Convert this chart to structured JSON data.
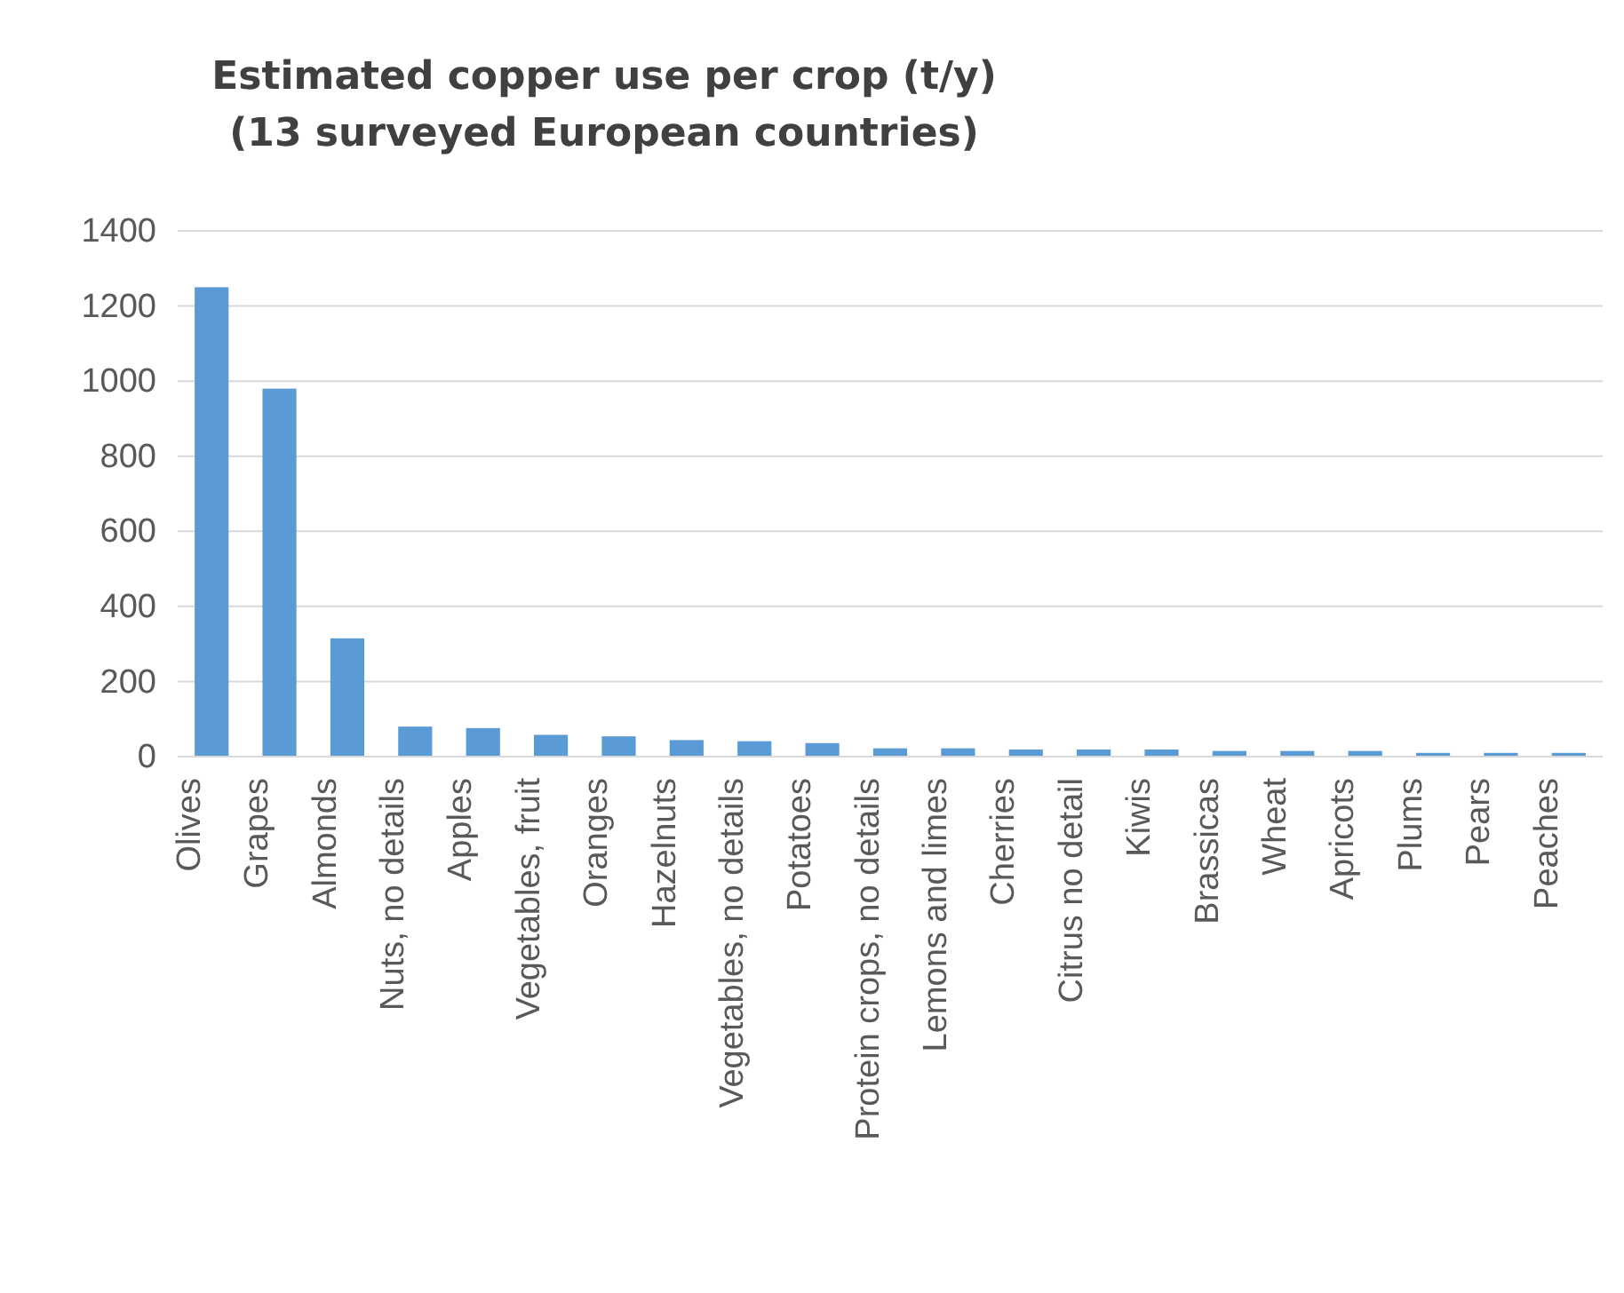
{
  "chart_data": {
    "type": "bar",
    "title": "Estimated copper use per crop (t/y) (13 surveyed European countries)",
    "categories": [
      "Olives",
      "Grapes",
      "Almonds",
      "Nuts, no details",
      "Apples",
      "Vegetables, fruit",
      "Oranges",
      "Hazelnuts",
      "Vegetables, no details",
      "Potatoes",
      "Protein crops, no details",
      "Lemons and limes",
      "Cherries",
      "Citrus no detail",
      "Kiwis",
      "Brassicas",
      "Wheat",
      "Apricots",
      "Plums",
      "Pears",
      "Peaches"
    ],
    "values": [
      1250,
      980,
      315,
      80,
      76,
      58,
      54,
      44,
      41,
      36,
      22,
      22,
      19,
      19,
      19,
      15,
      15,
      15,
      10,
      10,
      10
    ],
    "color": "#5b9bd5",
    "ylim": [
      0,
      1400
    ],
    "yticks": [
      0,
      200,
      400,
      600,
      800,
      1000,
      1200,
      1400
    ],
    "grid": "y"
  }
}
